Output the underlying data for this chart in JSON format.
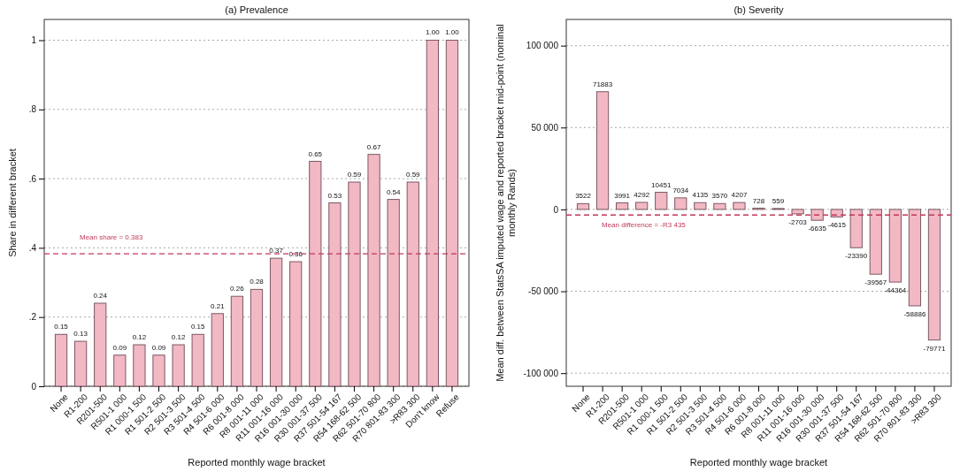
{
  "chart_data": [
    {
      "type": "bar",
      "title": "(a) Prevalence",
      "xlabel": "Reported monthly wage bracket",
      "ylabel": "Share in different bracket",
      "categories": [
        "None",
        "R1-200",
        "R201-500",
        "R501-1 000",
        "R1 000-1 500",
        "R1 501-2 500",
        "R2 501-3 500",
        "R3 501-4 500",
        "R4 501-6 000",
        "R6 001-8 000",
        "R8 001-11 000",
        "R11 001-16 000",
        "R16 001-30 000",
        "R30 001-37 500",
        "R37 501-54 167",
        "R54 168-62 500",
        "R62 501-70 800",
        "R70 801-83 300",
        ">R83 300",
        "Don't know",
        "Refuse"
      ],
      "values": [
        0.15,
        0.13,
        0.24,
        0.09,
        0.12,
        0.09,
        0.12,
        0.15,
        0.21,
        0.26,
        0.28,
        0.37,
        0.36,
        0.65,
        0.53,
        0.59,
        0.67,
        0.54,
        0.59,
        1.0,
        1.0
      ],
      "value_labels": [
        "0.15",
        "0.13",
        "0.24",
        "0.09",
        "0.12",
        "0.09",
        "0.12",
        "0.15",
        "0.21",
        "0.26",
        "0.28",
        "0.37",
        "0.36",
        "0.65",
        "0.53",
        "0.59",
        "0.67",
        "0.54",
        "0.59",
        "1.00",
        "1.00"
      ],
      "color": "#f2b8c4",
      "ylim": [
        0,
        1.06
      ],
      "yticks": [
        {
          "value": 0,
          "label": "0"
        },
        {
          "value": 0.2,
          "label": ".2"
        },
        {
          "value": 0.4,
          "label": ".4"
        },
        {
          "value": 0.6,
          "label": ".6"
        },
        {
          "value": 0.8,
          "label": ".8"
        },
        {
          "value": 1,
          "label": "1"
        }
      ],
      "grid": "y",
      "ref_lines": [
        {
          "axis": "y",
          "value": 0.383,
          "label": "Mean share = 0.383",
          "color": "#c0395a",
          "line_style": "dashed"
        }
      ]
    },
    {
      "type": "bar",
      "title": "(b) Severity",
      "xlabel": "Reported monthly wage bracket",
      "ylabel": "Mean diff. between StatsSA imputed wage and reported bracket mid-point (nominal monthly Rands)",
      "categories": [
        "None",
        "R1-200",
        "R201-500",
        "R501-1 000",
        "R1 000-1 500",
        "R1 501-2 500",
        "R2 501-3 500",
        "R3 501-4 500",
        "R4 501-6 000",
        "R6 001-8 000",
        "R8 001-11 000",
        "R11 001-16 000",
        "R16 001-30 000",
        "R30 001-37 500",
        "R37 501-54 167",
        "R54 168-62 500",
        "R62 501-70 800",
        "R70 801-83 300",
        ">R83 300"
      ],
      "values": [
        3522,
        71883,
        3991,
        4292,
        10451,
        7034,
        4135,
        3570,
        4207,
        728,
        559,
        -2703,
        -6635,
        -4615,
        -23390,
        -39567,
        -44364,
        -58886,
        -79771
      ],
      "data_labels": true,
      "color": "#f2b8c4",
      "ylim": [
        -108000,
        116000
      ],
      "yticks": [
        {
          "value": -100000,
          "label": "-100 000"
        },
        {
          "value": -50000,
          "label": "-50 000"
        },
        0,
        {
          "value": 50000,
          "label": "50 000"
        },
        {
          "value": 100000,
          "label": "100 000"
        }
      ],
      "grid": "y",
      "ref_lines": [
        {
          "axis": "y",
          "value": -3435,
          "label": "Mean difference = -R3 435",
          "color": "#c0395a",
          "line_style": "dashed"
        }
      ]
    }
  ]
}
